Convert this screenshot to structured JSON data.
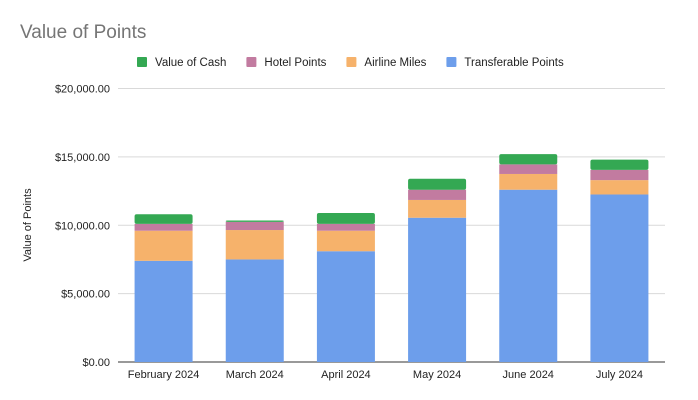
{
  "chart_data": {
    "type": "bar",
    "stacked": true,
    "title": "Value of Points",
    "xlabel": "",
    "ylabel": "Value of Points",
    "ylim": [
      0,
      20000
    ],
    "yticks": [
      0,
      5000,
      10000,
      15000,
      20000
    ],
    "ytick_labels": [
      "$0.00",
      "$5,000.00",
      "$10,000.00",
      "$15,000.00",
      "$20,000.00"
    ],
    "grid": true,
    "legend_position": "top",
    "categories": [
      "February 2024",
      "March 2024",
      "April 2024",
      "May 2024",
      "June 2024",
      "July 2024"
    ],
    "series": [
      {
        "name": "Transferable Points",
        "color": "#6d9eeb",
        "values": [
          7400,
          7500,
          8100,
          10550,
          12600,
          12250
        ]
      },
      {
        "name": "Airline Miles",
        "color": "#f6b26b",
        "values": [
          2200,
          2150,
          1500,
          1300,
          1150,
          1050
        ]
      },
      {
        "name": "Hotel Points",
        "color": "#c27ba0",
        "values": [
          500,
          600,
          500,
          750,
          700,
          750
        ]
      },
      {
        "name": "Value of Cash",
        "color": "#34a853",
        "values": [
          700,
          100,
          800,
          800,
          750,
          750
        ]
      }
    ],
    "legend_order": [
      "Value of Cash",
      "Hotel Points",
      "Airline Miles",
      "Transferable Points"
    ]
  }
}
